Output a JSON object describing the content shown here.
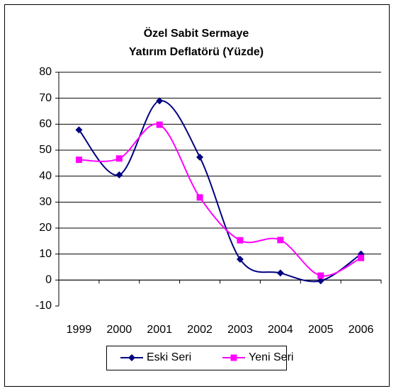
{
  "chart_data": {
    "type": "line",
    "title": [
      "Özel Sabit Sermaye",
      "Yatırım Deflatörü (Yüzde)"
    ],
    "categories": [
      "1999",
      "2000",
      "2001",
      "2002",
      "2003",
      "2004",
      "2005",
      "2006"
    ],
    "series": [
      {
        "name": "Eski Seri",
        "color": "#000080",
        "marker": "diamond",
        "values": [
          57.8,
          40.5,
          69,
          47.3,
          8,
          2.7,
          -0.3,
          10
        ]
      },
      {
        "name": "Yeni Seri",
        "color": "#ff00ff",
        "marker": "square",
        "values": [
          46.3,
          46.8,
          59.8,
          31.8,
          15.3,
          15.4,
          1.7,
          8.5
        ]
      }
    ],
    "ylim": [
      -10,
      80
    ],
    "yticks": [
      -10,
      0,
      10,
      20,
      30,
      40,
      50,
      60,
      70,
      80
    ],
    "grid": true,
    "smooth": true,
    "legend": "bottom"
  }
}
